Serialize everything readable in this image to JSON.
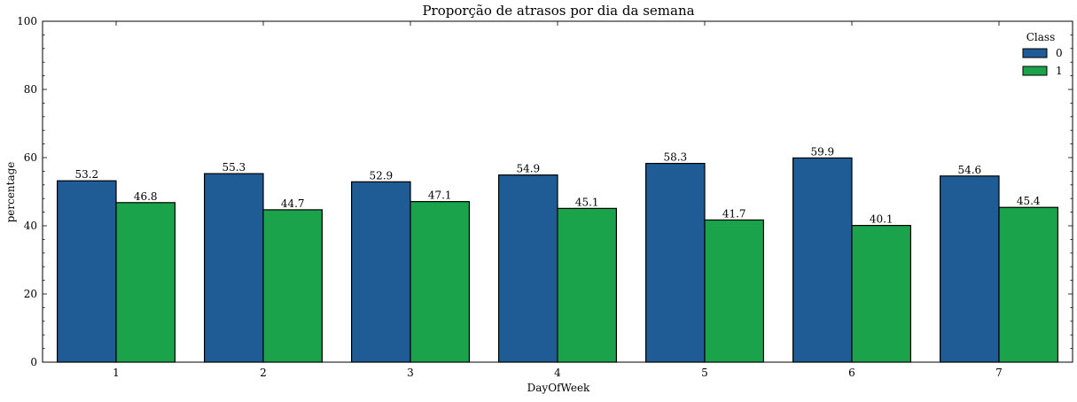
{
  "chart_data": {
    "type": "bar",
    "title": "Proporção de atrasos por dia da semana",
    "xlabel": "DayOfWeek",
    "ylabel": "percentage",
    "categories": [
      "1",
      "2",
      "3",
      "4",
      "5",
      "6",
      "7"
    ],
    "ylim": [
      0,
      100
    ],
    "yticks": [
      0,
      20,
      40,
      60,
      80,
      100
    ],
    "grid": false,
    "legend": {
      "title": "Class",
      "position": "top-right"
    },
    "series": [
      {
        "name": "0",
        "color": "#1f5b94",
        "values": [
          53.2,
          55.3,
          52.9,
          54.9,
          58.3,
          59.9,
          54.6
        ]
      },
      {
        "name": "1",
        "color": "#1aa34a",
        "values": [
          46.8,
          44.7,
          47.1,
          45.1,
          41.7,
          40.1,
          45.4
        ]
      }
    ]
  }
}
